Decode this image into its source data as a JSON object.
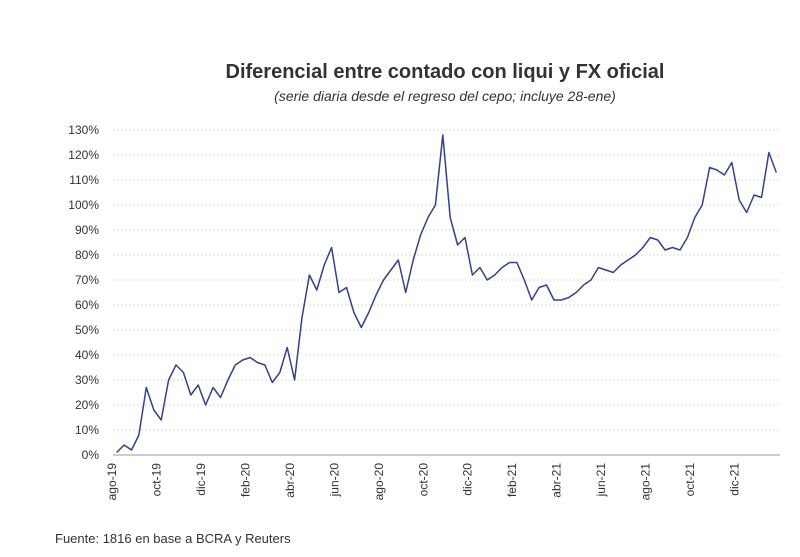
{
  "chart_data": {
    "type": "line",
    "title": "Diferencial entre contado con liqui y FX oficial",
    "subtitle": "(serie diaria desde el regreso del cepo; incluye 28-ene)",
    "source": "Fuente: 1816 en base a BCRA y Reuters",
    "categories": [
      "ago-19",
      null,
      null,
      null,
      null,
      null,
      "oct-19",
      null,
      null,
      null,
      null,
      null,
      "dic-19",
      null,
      null,
      null,
      null,
      null,
      "feb-20",
      null,
      null,
      null,
      null,
      null,
      "abr-20",
      null,
      null,
      null,
      null,
      null,
      "jun-20",
      null,
      null,
      null,
      null,
      null,
      "ago-20",
      null,
      null,
      null,
      null,
      null,
      "oct-20",
      null,
      null,
      null,
      null,
      null,
      "dic-20",
      null,
      null,
      null,
      null,
      null,
      "feb-21",
      null,
      null,
      null,
      null,
      null,
      "abr-21",
      null,
      null,
      null,
      null,
      null,
      "jun-21",
      null,
      null,
      null,
      null,
      null,
      "ago-21",
      null,
      null,
      null,
      null,
      null,
      "oct-21",
      null,
      null,
      null,
      null,
      null,
      "dic-21",
      null,
      null,
      null,
      null,
      null
    ],
    "series": [
      {
        "name": "Diferencial",
        "color": "#33428a",
        "values": [
          1,
          4,
          2,
          8,
          27,
          18,
          14,
          30,
          36,
          33,
          24,
          28,
          20,
          27,
          23,
          30,
          36,
          38,
          39,
          37,
          36,
          29,
          33,
          43,
          30,
          55,
          72,
          66,
          76,
          83,
          65,
          67,
          57,
          51,
          57,
          64,
          70,
          74,
          78,
          65,
          78,
          88,
          95,
          100,
          128,
          95,
          84,
          87,
          72,
          75,
          70,
          72,
          75,
          77,
          77,
          70,
          62,
          67,
          68,
          62,
          62,
          63,
          65,
          68,
          70,
          75,
          74,
          73,
          76,
          78,
          80,
          83,
          87,
          86,
          82,
          83,
          82,
          87,
          95,
          100,
          115,
          114,
          112,
          117,
          102,
          97,
          104,
          103,
          121,
          113
        ]
      }
    ],
    "ylim": [
      0,
      130
    ],
    "yticks": [
      {
        "value": 0,
        "label": "0%"
      },
      {
        "value": 10,
        "label": "10%"
      },
      {
        "value": 20,
        "label": "20%"
      },
      {
        "value": 30,
        "label": "30%"
      },
      {
        "value": 40,
        "label": "40%"
      },
      {
        "value": 50,
        "label": "50%"
      },
      {
        "value": 60,
        "label": "60%"
      },
      {
        "value": 70,
        "label": "70%"
      },
      {
        "value": 80,
        "label": "80%"
      },
      {
        "value": 90,
        "label": "90%"
      },
      {
        "value": 100,
        "label": "100%"
      },
      {
        "value": 110,
        "label": "110%"
      },
      {
        "value": 120,
        "label": "120%"
      },
      {
        "value": 130,
        "label": "130%"
      }
    ],
    "grid": true
  }
}
